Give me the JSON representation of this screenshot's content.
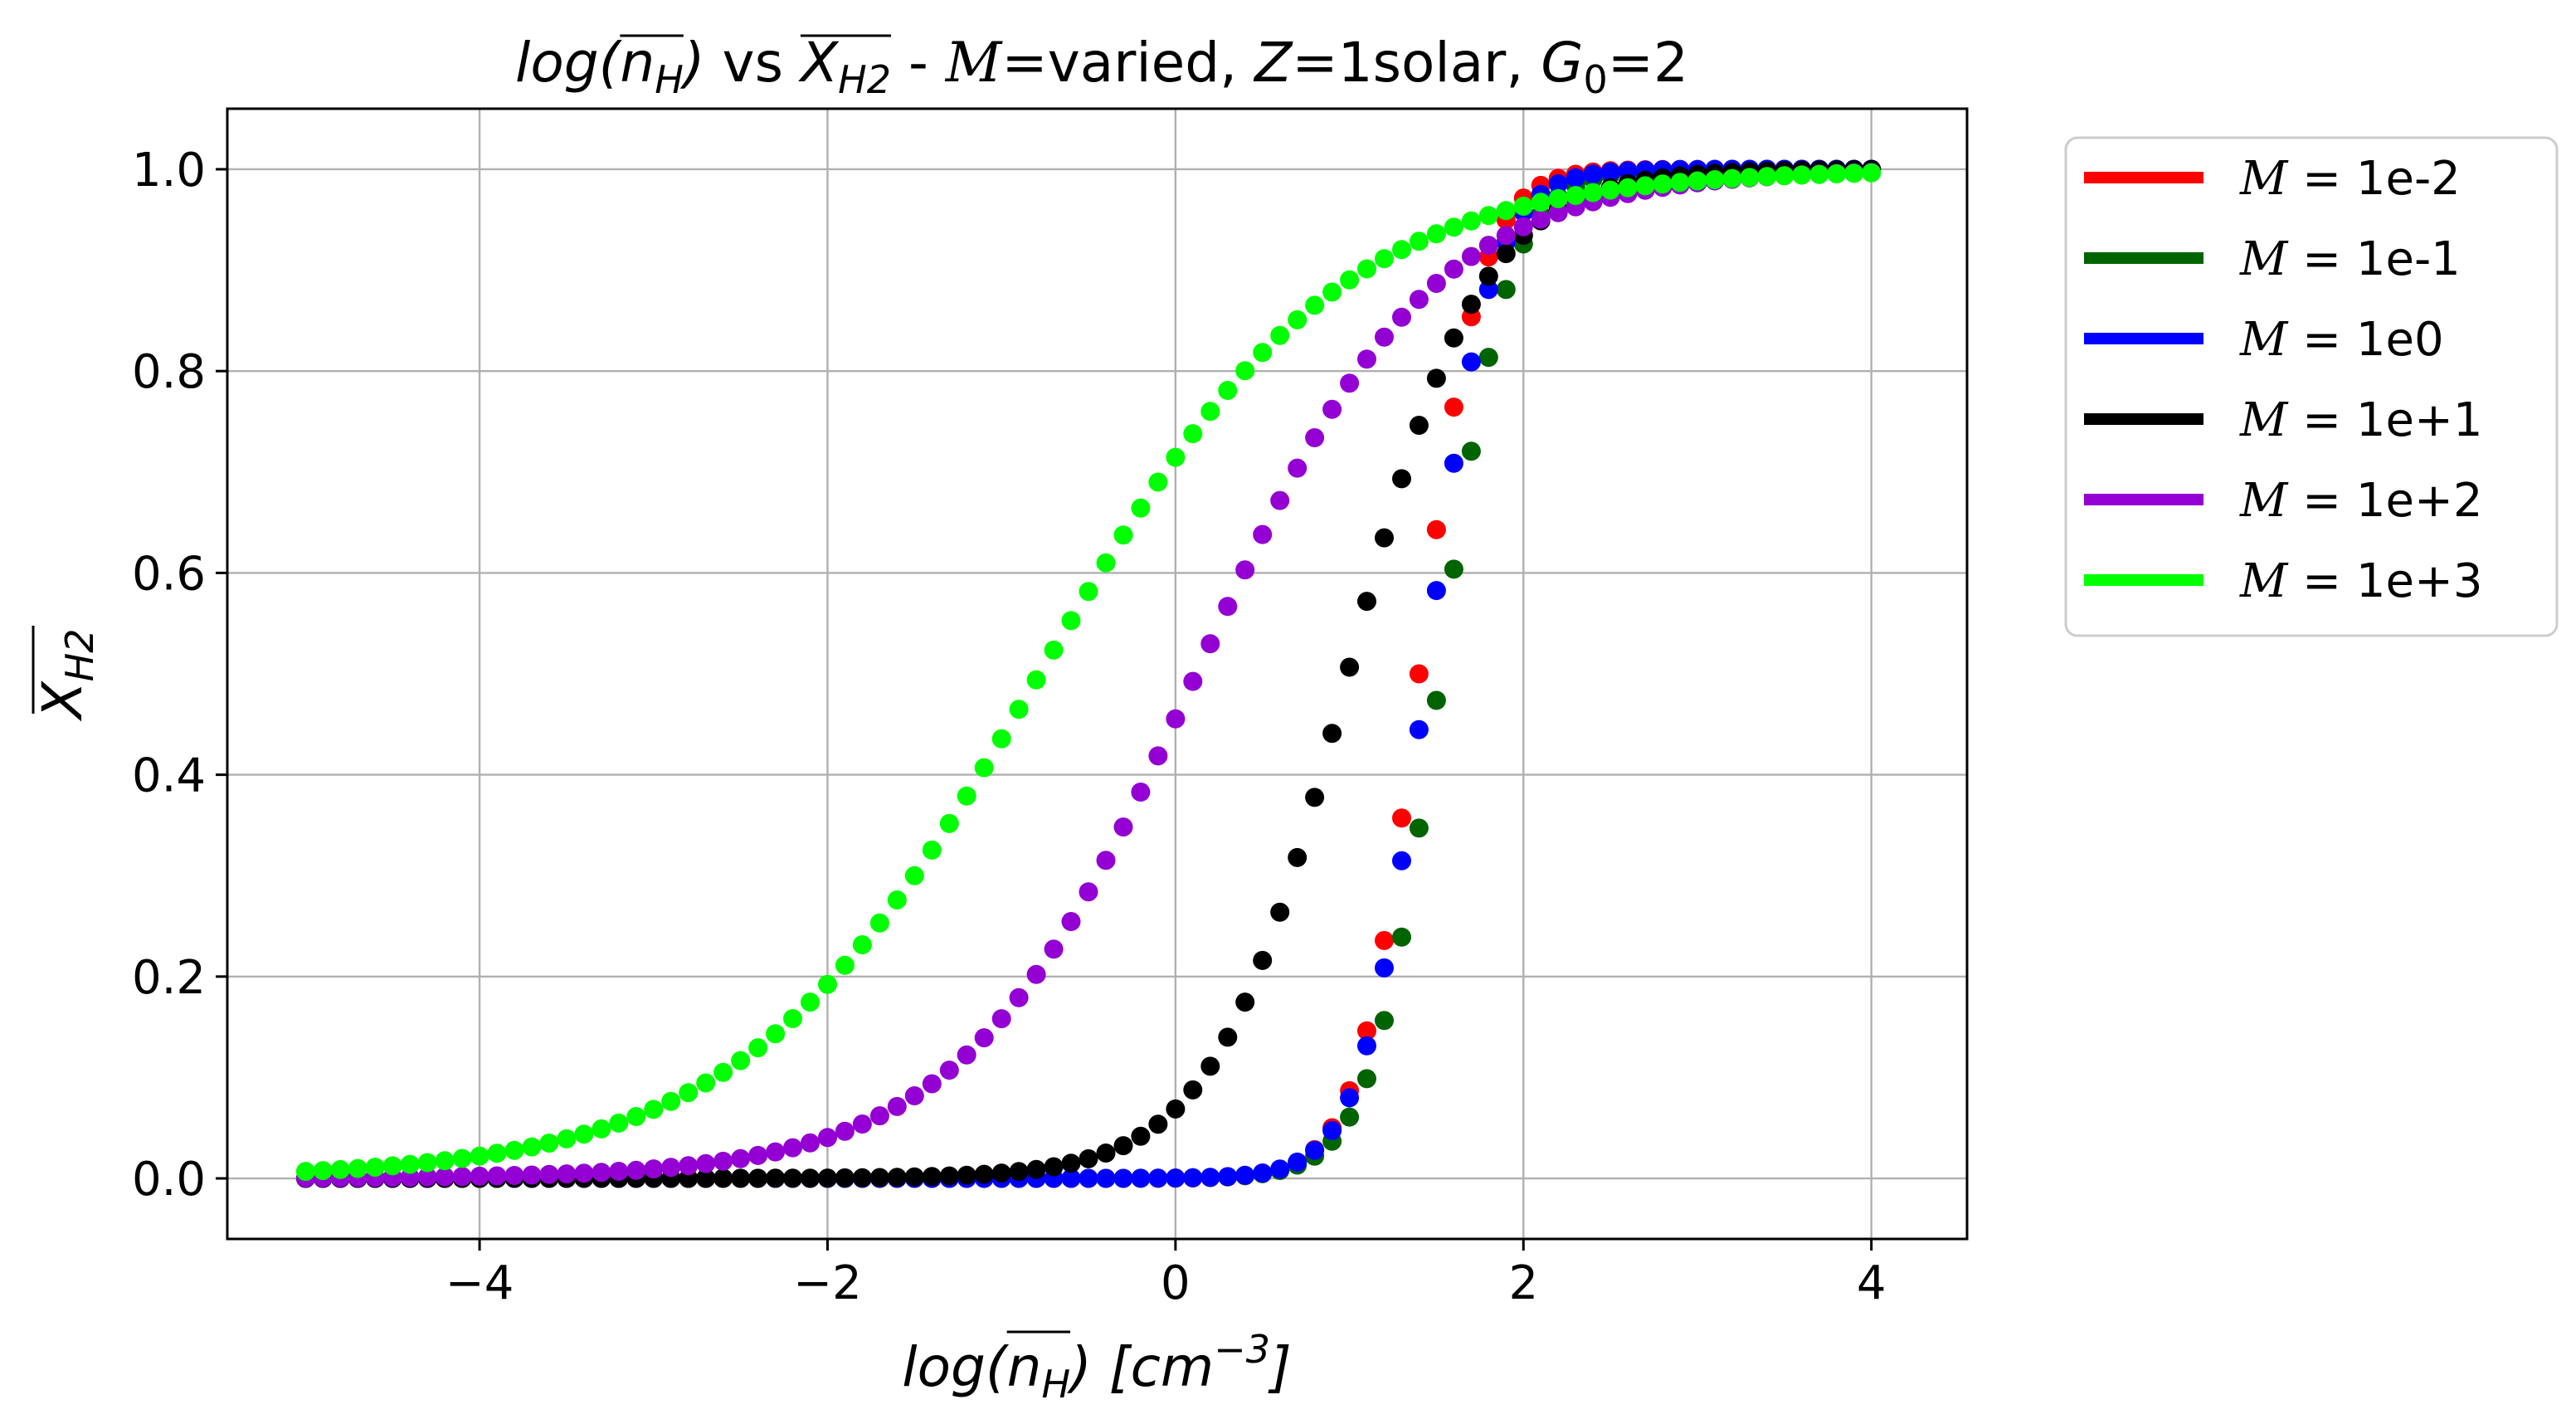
{
  "chart_data": {
    "type": "scatter",
    "title": {
      "lhs": "log(n",
      "lhs_sub": "H",
      "lhs_close": ")",
      "vs": " vs ",
      "xh2": "X",
      "xh2_sub": "H2",
      "dash": " - ",
      "mach_symbol": "M",
      "mach_value": "=varied, ",
      "z_symbol": "Z",
      "z_value": "=1solar, ",
      "g_symbol": "G",
      "g_sub": "0",
      "g_value": "=2"
    },
    "xlabel": {
      "main": "log(n",
      "sub": "H",
      "close": ") [",
      "unit": "cm",
      "unit_exp": "−3",
      "end": "]"
    },
    "ylabel": {
      "main": "X",
      "sub": "H2"
    },
    "xlim": [
      -5.45,
      4.55
    ],
    "ylim": [
      -0.06,
      1.06
    ],
    "xticks": [
      -4,
      -2,
      0,
      2,
      4
    ],
    "xtick_labels": [
      "−4",
      "−2",
      "0",
      "2",
      "4"
    ],
    "yticks": [
      0.0,
      0.2,
      0.4,
      0.6,
      0.8,
      1.0
    ],
    "ytick_labels": [
      "0.0",
      "0.2",
      "0.4",
      "0.6",
      "0.8",
      "1.0"
    ],
    "grid": true,
    "legend_position": "outside-right",
    "x_range": [
      -5,
      4
    ],
    "points_per_series": 91,
    "series": [
      {
        "name": "= 1e-2",
        "symbol": "M",
        "color": "#ff0000",
        "center": 1.4,
        "width": 0.17
      },
      {
        "name": "= 1e-1",
        "symbol": "M",
        "color": "#006400",
        "center": 1.52,
        "width": 0.19
      },
      {
        "name": "= 1e0",
        "symbol": "M",
        "color": "#0000ff",
        "center": 1.44,
        "width": 0.18
      },
      {
        "name": "= 1e+1",
        "symbol": "M",
        "color": "#000000",
        "center": 0.99,
        "width": 0.38
      },
      {
        "name": "= 1e+2",
        "symbol": "M",
        "color": "#9400d3",
        "center": 0.12,
        "width": 0.67
      },
      {
        "name": "= 1e+3",
        "symbol": "M",
        "color": "#00ff00",
        "center": -0.78,
        "width": 0.85
      }
    ]
  }
}
